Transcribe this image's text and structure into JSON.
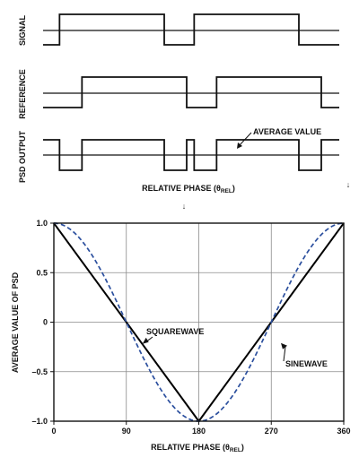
{
  "timing": {
    "signal_label": "SIGNAL",
    "reference_label": "REFERENCE",
    "psd_label": "PSD OUTPUT",
    "avg_annotation": "AVERAGE VALUE",
    "x_title_main": "RELATIVE PHASE (θ",
    "x_title_sub": "REL",
    "x_title_close": ")",
    "arrow_glyph": "↓",
    "signal_edges_phase_deg": [
      22,
      162,
      202,
      342
    ],
    "reference_edges_phase_deg": [
      52,
      192,
      232,
      372
    ],
    "psd_edges_phase_deg": [
      22,
      52,
      162,
      192,
      202,
      232,
      342,
      372
    ]
  },
  "chart_data": {
    "type": "line",
    "title": "",
    "xlabel_main": "RELATIVE PHASE (θ",
    "xlabel_sub": "REL",
    "xlabel_close": ")",
    "ylabel": "AVERAGE VALUE OF PSD",
    "xlim": [
      0,
      360
    ],
    "ylim": [
      -1.0,
      1.0
    ],
    "x_ticks": [
      0,
      90,
      180,
      270,
      360
    ],
    "x_tick_labels": [
      "0",
      "90",
      "180",
      "270",
      "360"
    ],
    "y_ticks": [
      1.0,
      0.5,
      0,
      -0.5,
      -1.0
    ],
    "y_tick_labels": [
      "1.0",
      "0.5",
      "0",
      "–0.5",
      "–1.0"
    ],
    "grid": true,
    "series": [
      {
        "name": "SQUAREWAVE",
        "color": "#000000",
        "style": "solid",
        "x": [
          0,
          90,
          180,
          270,
          360
        ],
        "y": [
          1.0,
          0.0,
          -1.0,
          0.0,
          1.0
        ]
      },
      {
        "name": "SINEWAVE",
        "color": "#2b4f9e",
        "style": "dashed",
        "x": [
          0,
          30,
          60,
          90,
          120,
          150,
          180,
          210,
          240,
          270,
          300,
          330,
          360
        ],
        "y": [
          1.0,
          0.866,
          0.5,
          0.0,
          -0.5,
          -0.866,
          -1.0,
          -0.866,
          -0.5,
          0.0,
          0.5,
          0.866,
          1.0
        ]
      }
    ],
    "annotations": [
      {
        "text": "SQUAREWAVE",
        "points_to": [
          110,
          -0.22
        ]
      },
      {
        "text": "SINEWAVE",
        "points_to": [
          282,
          -0.21
        ]
      }
    ]
  }
}
